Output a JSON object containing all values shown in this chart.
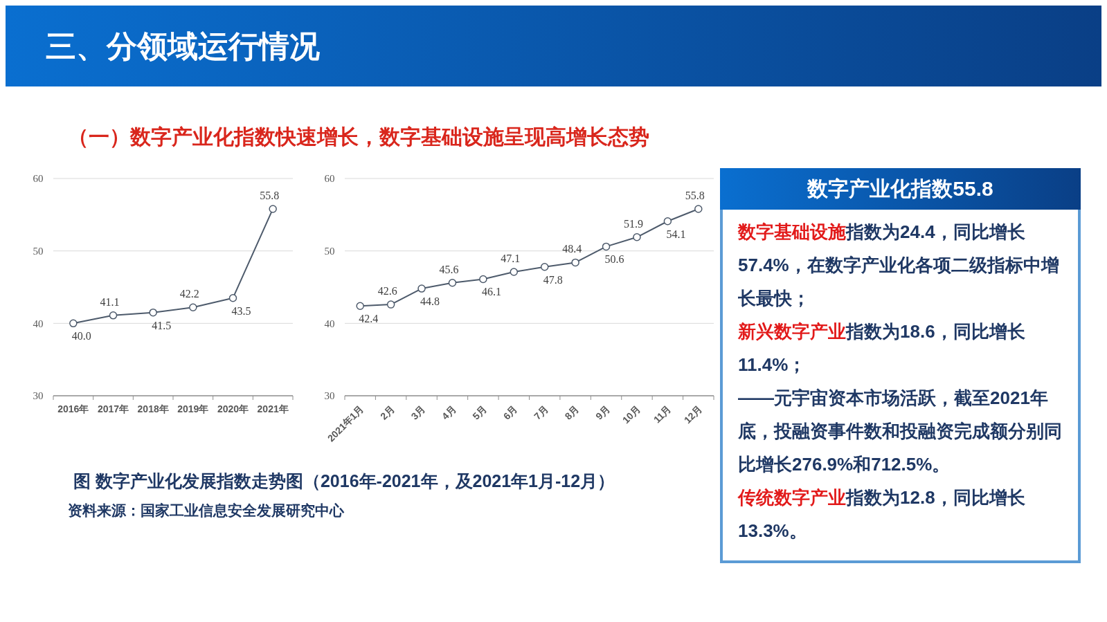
{
  "chart_data": [
    {
      "type": "line",
      "title": "三、分领域运行情况",
      "subtitle": "（一）数字产业化指数快速增长，数字基础设施呈现高增长态势",
      "categories": [
        "2016年",
        "2017年",
        "2018年",
        "2019年",
        "2020年",
        "2021年"
      ],
      "series": [
        {
          "color": "#4d5a6b",
          "values": [
            40.0,
            41.1,
            41.5,
            42.2,
            43.5,
            55.8
          ],
          "value_labels": [
            "40.0",
            "41.1",
            "41.5",
            "42.2",
            "43.5",
            "55.8"
          ]
        }
      ],
      "ylim": [
        30,
        60
      ],
      "yticks": [
        30,
        40,
        50,
        60
      ],
      "grid": "y",
      "marker": "circle",
      "annotations": [
        "图  数字产业化发展指数走势图（2016年-2021年，及2021年1月-12月）",
        "资料来源：国家工业信息安全发展研究中心"
      ]
    },
    {
      "type": "line",
      "categories": [
        "2021年1月",
        "2月",
        "3月",
        "4月",
        "5月",
        "6月",
        "7月",
        "8月",
        "9月",
        "10月",
        "11月",
        "12月"
      ],
      "series": [
        {
          "color": "#4d5a6b",
          "values": [
            42.4,
            42.6,
            44.8,
            45.6,
            46.1,
            47.1,
            47.8,
            48.4,
            50.6,
            51.9,
            54.1,
            55.8
          ],
          "value_labels": [
            "42.4",
            "42.6",
            "44.8",
            "45.6",
            "46.1",
            "47.1",
            "47.8",
            "48.4",
            "50.6",
            "51.9",
            "54.1",
            "55.8"
          ]
        }
      ],
      "ylim": [
        30,
        60
      ],
      "yticks": [
        30,
        40,
        50,
        60
      ],
      "grid": "y",
      "marker": "circle"
    },
    {
      "type": "other",
      "title": "数字产业化指数55.8",
      "annotations": [
        "数字基础设施",
        "指数为24.4，同比增长57.4%，在数字产业化各项二级指标中增长最快；",
        "新兴数字产业",
        "指数为18.6，同比增长11.4%；",
        "——元宇宙资本市场活跃，截至2021年底，投融资事件数和投融资完成额分别同比增长276.9%和712.5%。",
        "传统数字产业",
        "指数为12.8，同比增长13.3%。"
      ]
    }
  ]
}
